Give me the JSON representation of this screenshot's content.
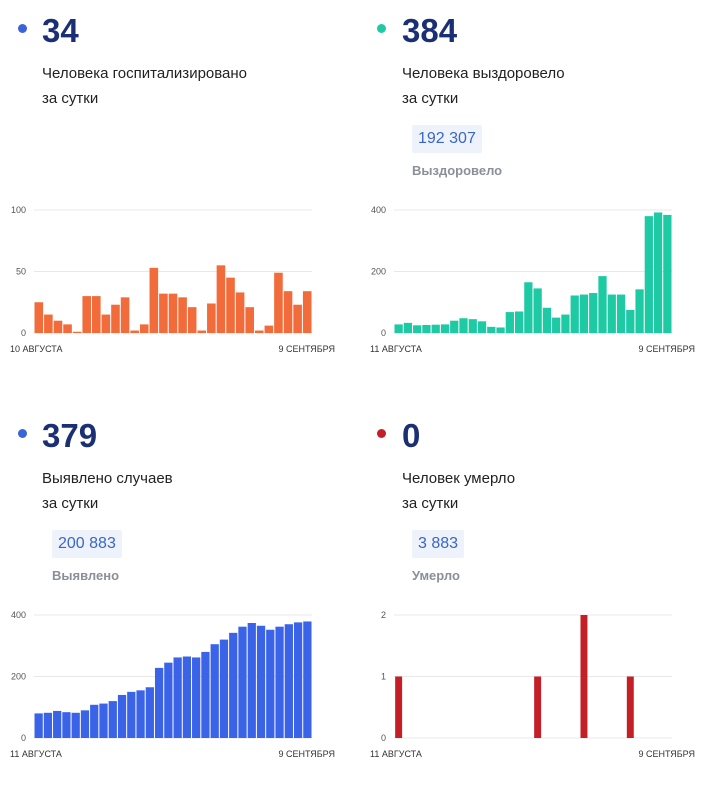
{
  "panels": [
    {
      "value": "34",
      "line1": "Человека госпитализировано",
      "line2": "за сутки",
      "color": "#f26b3a",
      "dot_color": "#3b63d9"
    },
    {
      "value": "384",
      "line1": "Человека выздоровело",
      "line2": "за сутки",
      "total": "192 307",
      "total_label": "Выздоровело",
      "color": "#1ecaa3",
      "dot_color": "#1ecaa3"
    },
    {
      "value": "379",
      "line1": "Выявлено случаев",
      "line2": "за сутки",
      "total": "200 883",
      "total_label": "Выявлено",
      "color": "#3b63e8",
      "dot_color": "#3b63d9"
    },
    {
      "value": "0",
      "line1": "Человек умерло",
      "line2": "за сутки",
      "total": "3 883",
      "total_label": "Умерло",
      "color": "#c41f26",
      "dot_color": "#c41f26"
    }
  ],
  "chart_data": [
    {
      "type": "bar",
      "ylim": [
        0,
        100
      ],
      "yticks": [
        0,
        50,
        100
      ],
      "x_start_label": "10 АВГУСТА",
      "x_end_label": "9 СЕНТЯБРЯ",
      "values": [
        25,
        15,
        10,
        7,
        1,
        30,
        30,
        15,
        23,
        29,
        2,
        7,
        53,
        32,
        32,
        29,
        21,
        2,
        24,
        55,
        45,
        33,
        21,
        2,
        6,
        49,
        34,
        23,
        34
      ]
    },
    {
      "type": "bar",
      "ylim": [
        0,
        400
      ],
      "yticks": [
        0,
        200,
        400
      ],
      "x_start_label": "11 АВГУСТА",
      "x_end_label": "9 СЕНТЯБРЯ",
      "values": [
        28,
        33,
        25,
        26,
        27,
        28,
        40,
        48,
        45,
        38,
        20,
        18,
        68,
        70,
        165,
        145,
        82,
        50,
        60,
        122,
        125,
        130,
        185,
        125,
        125,
        75,
        142,
        380,
        392,
        384
      ]
    },
    {
      "type": "bar",
      "ylim": [
        0,
        400
      ],
      "yticks": [
        0,
        200,
        400
      ],
      "x_start_label": "11 АВГУСТА",
      "x_end_label": "9 СЕНТЯБРЯ",
      "values": [
        80,
        82,
        88,
        84,
        82,
        90,
        108,
        112,
        120,
        140,
        150,
        155,
        165,
        228,
        245,
        262,
        265,
        262,
        280,
        305,
        320,
        342,
        362,
        374,
        365,
        352,
        362,
        370,
        376,
        379
      ]
    },
    {
      "type": "bar",
      "ylim": [
        0,
        2
      ],
      "yticks": [
        0,
        1,
        2
      ],
      "x_start_label": "11 АВГУСТА",
      "x_end_label": "9 СЕНТЯБРЯ",
      "values": [
        1,
        0,
        0,
        0,
        0,
        0,
        0,
        0,
        0,
        0,
        0,
        0,
        0,
        0,
        0,
        1,
        0,
        0,
        0,
        0,
        2,
        0,
        0,
        0,
        0,
        1,
        0,
        0,
        0,
        0
      ]
    }
  ]
}
